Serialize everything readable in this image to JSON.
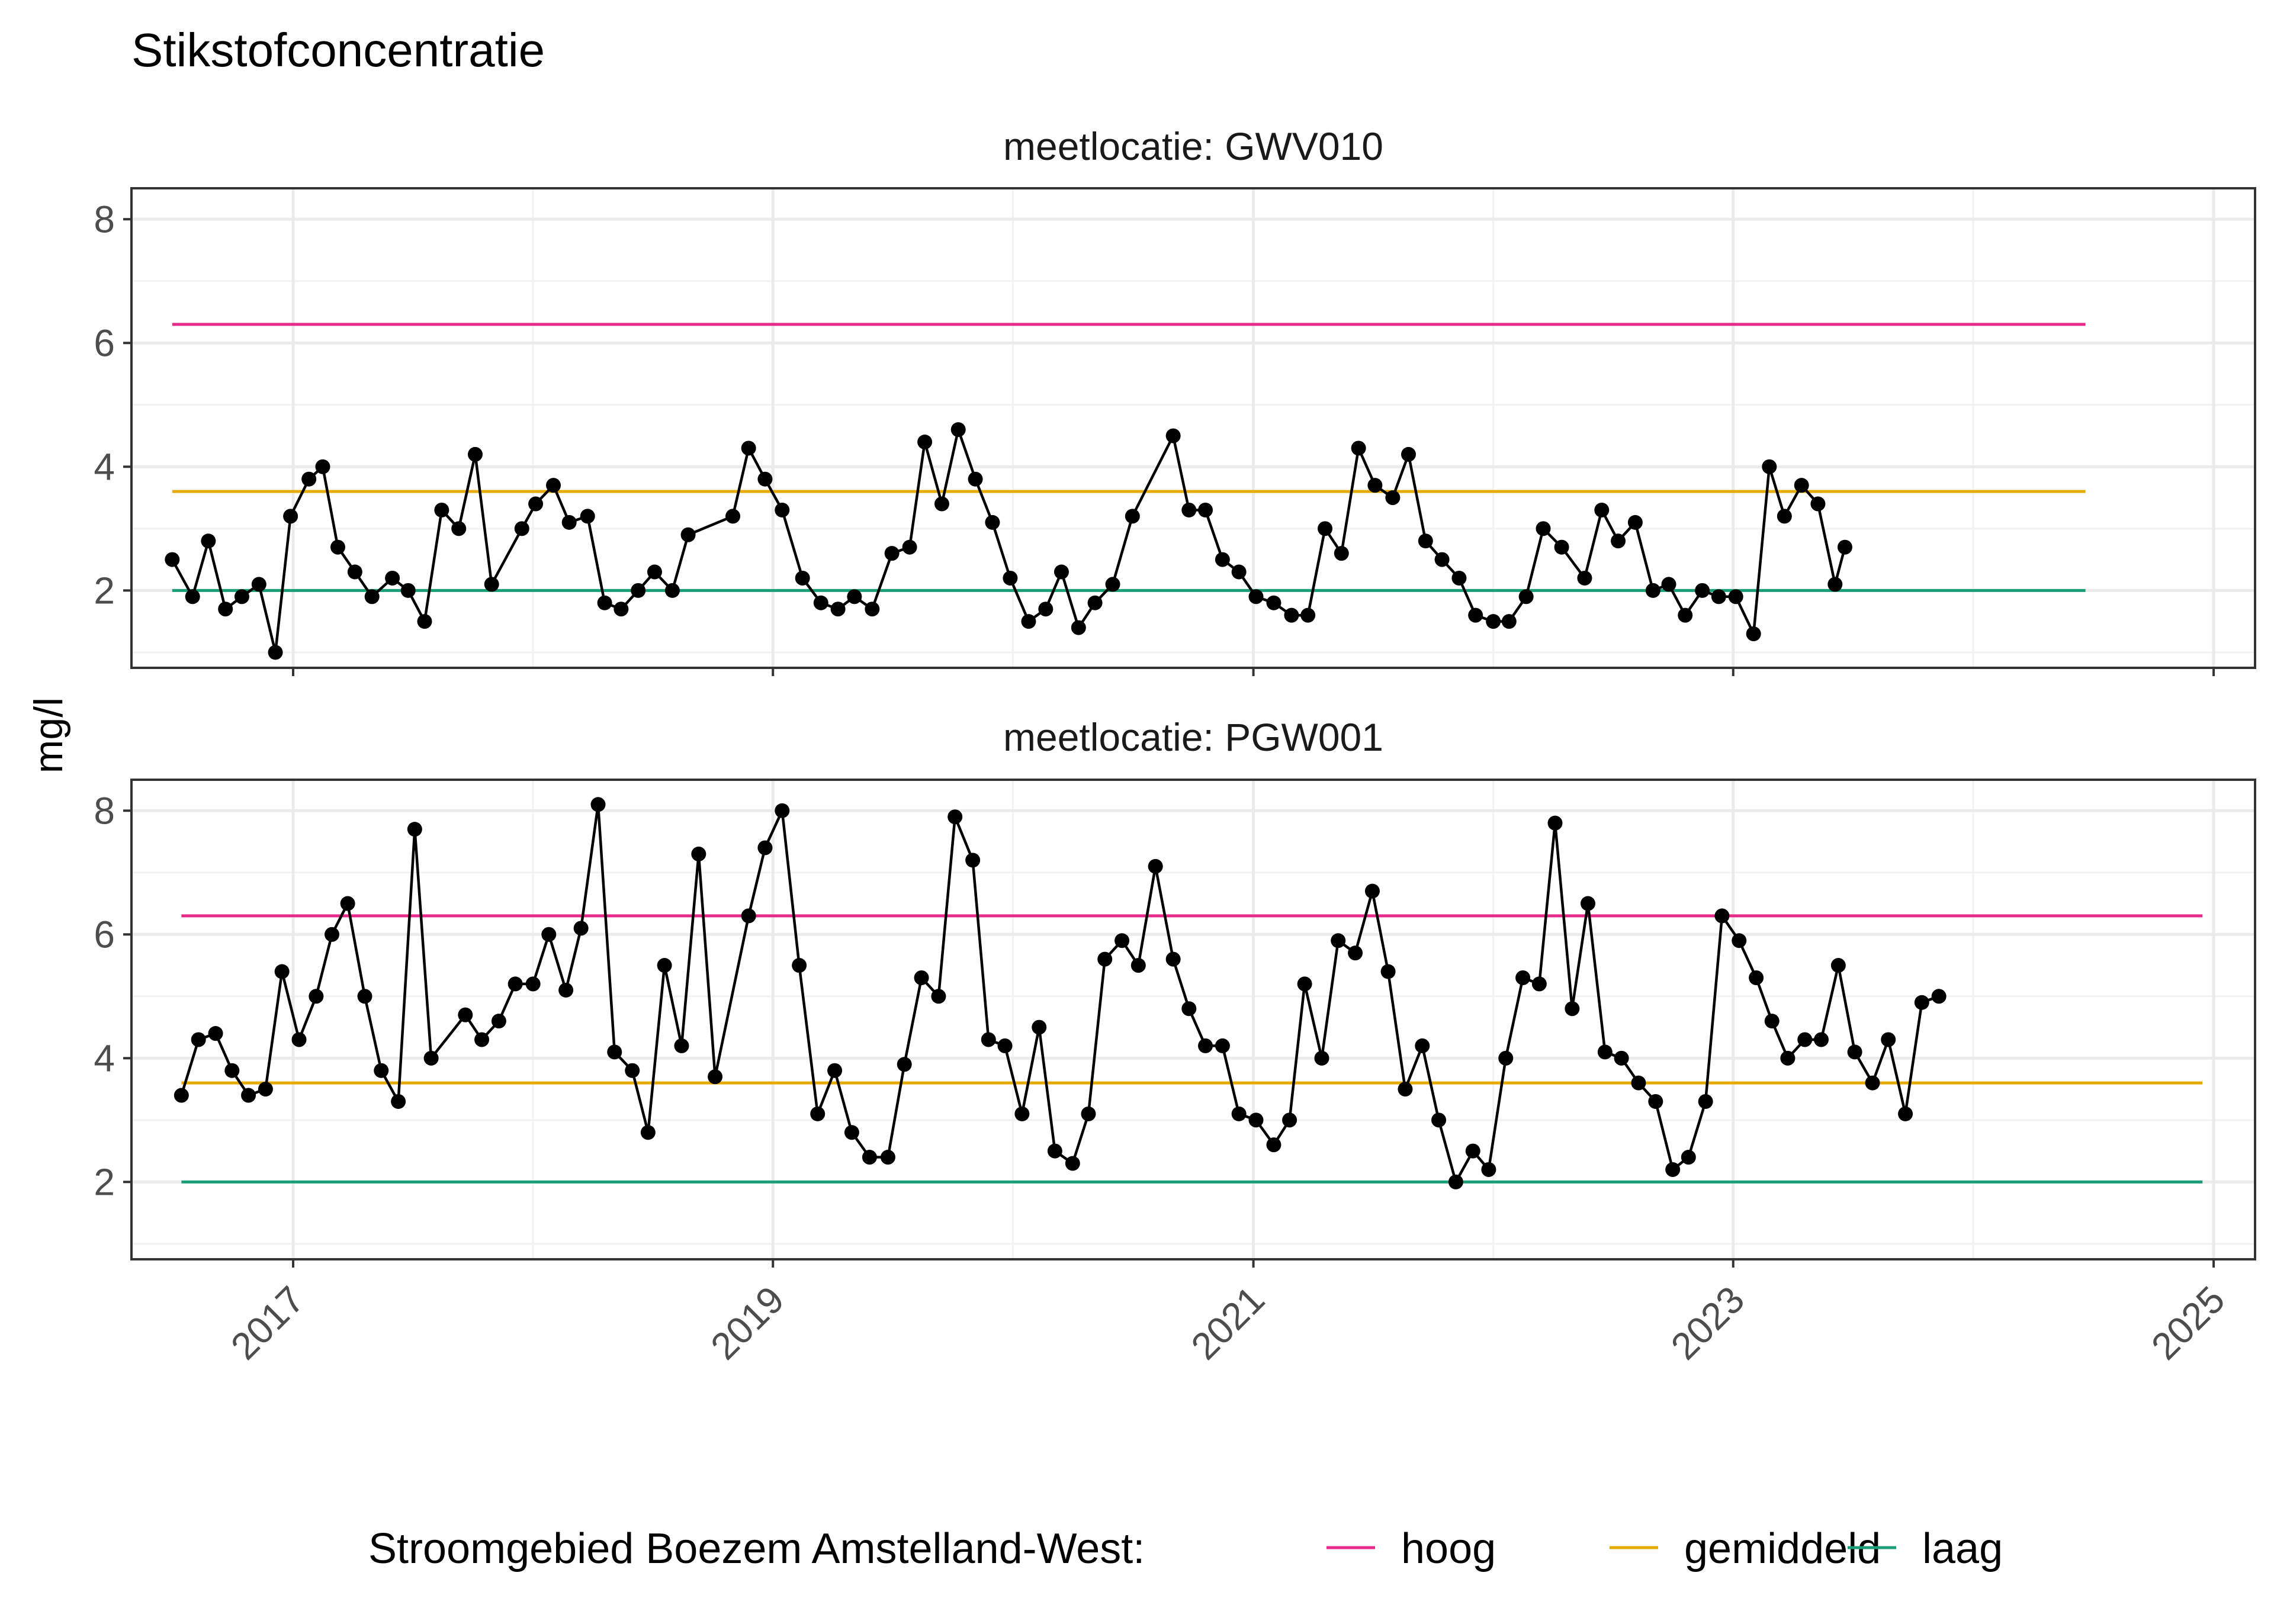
{
  "chart_data": {
    "type": "line",
    "title": "Stikstofconcentratie",
    "ylabel": "mg/l",
    "xlabel": "",
    "x_ticks": [
      "2017",
      "2019",
      "2021",
      "2023",
      "2025"
    ],
    "y_ticks": [
      2,
      4,
      6,
      8
    ],
    "ylim": [
      0.75,
      8.5
    ],
    "xlim": [
      "2016-04-30",
      "2025-03-05"
    ],
    "grid": true,
    "legend": {
      "title": "Stroomgebied Boezem Amstelland-West:",
      "position": "bottom",
      "items": [
        {
          "label": "hoog",
          "color": "#E7298A"
        },
        {
          "label": "gemiddeld",
          "color": "#E6AB02"
        },
        {
          "label": "laag",
          "color": "#1B9E77"
        }
      ]
    },
    "series_color": "#000000",
    "panels": [
      {
        "strip": "meetlocatie: GWV010",
        "reference_lines": {
          "hoog": {
            "value": 6.3,
            "x_range": [
              "2016-07-01",
              "2024-06-20"
            ]
          },
          "gemiddeld": {
            "value": 3.6,
            "x_range": [
              "2016-07-01",
              "2024-06-20"
            ]
          },
          "laag": {
            "value": 2.0,
            "x_range": [
              "2016-07-01",
              "2024-06-20"
            ]
          }
        },
        "points": [
          [
            "2016-07-01",
            2.5
          ],
          [
            "2016-08-01",
            1.9
          ],
          [
            "2016-08-25",
            2.8
          ],
          [
            "2016-09-20",
            1.7
          ],
          [
            "2016-10-15",
            1.9
          ],
          [
            "2016-11-10",
            2.1
          ],
          [
            "2016-12-05",
            1.0
          ],
          [
            "2016-12-28",
            3.2
          ],
          [
            "2017-01-25",
            3.8
          ],
          [
            "2017-02-15",
            4.0
          ],
          [
            "2017-03-10",
            2.7
          ],
          [
            "2017-04-05",
            2.3
          ],
          [
            "2017-05-01",
            1.9
          ],
          [
            "2017-06-01",
            2.2
          ],
          [
            "2017-06-25",
            2.0
          ],
          [
            "2017-07-20",
            1.5
          ],
          [
            "2017-08-15",
            3.3
          ],
          [
            "2017-09-10",
            3.0
          ],
          [
            "2017-10-05",
            4.2
          ],
          [
            "2017-10-30",
            2.1
          ],
          [
            "2017-12-15",
            3.0
          ],
          [
            "2018-01-05",
            3.4
          ],
          [
            "2018-02-01",
            3.7
          ],
          [
            "2018-02-25",
            3.1
          ],
          [
            "2018-03-25",
            3.2
          ],
          [
            "2018-04-20",
            1.8
          ],
          [
            "2018-05-15",
            1.7
          ],
          [
            "2018-06-10",
            2.0
          ],
          [
            "2018-07-05",
            2.3
          ],
          [
            "2018-08-01",
            2.0
          ],
          [
            "2018-08-25",
            2.9
          ],
          [
            "2018-11-01",
            3.2
          ],
          [
            "2018-11-25",
            4.3
          ],
          [
            "2018-12-20",
            3.8
          ],
          [
            "2019-01-15",
            3.3
          ],
          [
            "2019-02-15",
            2.2
          ],
          [
            "2019-03-15",
            1.8
          ],
          [
            "2019-04-10",
            1.7
          ],
          [
            "2019-05-05",
            1.9
          ],
          [
            "2019-06-01",
            1.7
          ],
          [
            "2019-07-01",
            2.6
          ],
          [
            "2019-07-28",
            2.7
          ],
          [
            "2019-08-20",
            4.4
          ],
          [
            "2019-09-15",
            3.4
          ],
          [
            "2019-10-10",
            4.6
          ],
          [
            "2019-11-05",
            3.8
          ],
          [
            "2019-12-01",
            3.1
          ],
          [
            "2019-12-28",
            2.2
          ],
          [
            "2020-01-25",
            1.5
          ],
          [
            "2020-02-20",
            1.7
          ],
          [
            "2020-03-15",
            2.3
          ],
          [
            "2020-04-10",
            1.4
          ],
          [
            "2020-05-05",
            1.8
          ],
          [
            "2020-06-01",
            2.1
          ],
          [
            "2020-07-01",
            3.2
          ],
          [
            "2020-09-01",
            4.5
          ],
          [
            "2020-09-25",
            3.3
          ],
          [
            "2020-10-20",
            3.3
          ],
          [
            "2020-11-15",
            2.5
          ],
          [
            "2020-12-10",
            2.3
          ],
          [
            "2021-01-05",
            1.9
          ],
          [
            "2021-02-01",
            1.8
          ],
          [
            "2021-02-28",
            1.6
          ],
          [
            "2021-03-25",
            1.6
          ],
          [
            "2021-04-20",
            3.0
          ],
          [
            "2021-05-15",
            2.6
          ],
          [
            "2021-06-10",
            4.3
          ],
          [
            "2021-07-05",
            3.7
          ],
          [
            "2021-08-01",
            3.5
          ],
          [
            "2021-08-25",
            4.2
          ],
          [
            "2021-09-20",
            2.8
          ],
          [
            "2021-10-15",
            2.5
          ],
          [
            "2021-11-10",
            2.2
          ],
          [
            "2021-12-05",
            1.6
          ],
          [
            "2022-01-01",
            1.5
          ],
          [
            "2022-01-25",
            1.5
          ],
          [
            "2022-02-20",
            1.9
          ],
          [
            "2022-03-18",
            3.0
          ],
          [
            "2022-04-15",
            2.7
          ],
          [
            "2022-05-20",
            2.2
          ],
          [
            "2022-06-15",
            3.3
          ],
          [
            "2022-07-10",
            2.8
          ],
          [
            "2022-08-05",
            3.1
          ],
          [
            "2022-09-01",
            2.0
          ],
          [
            "2022-09-25",
            2.1
          ],
          [
            "2022-10-20",
            1.6
          ],
          [
            "2022-11-15",
            2.0
          ],
          [
            "2022-12-10",
            1.9
          ],
          [
            "2023-01-05",
            1.9
          ],
          [
            "2023-02-01",
            1.3
          ],
          [
            "2023-02-25",
            4.0
          ],
          [
            "2023-03-20",
            3.2
          ],
          [
            "2023-04-15",
            3.7
          ],
          [
            "2023-05-10",
            3.4
          ],
          [
            "2023-06-05",
            2.1
          ],
          [
            "2023-06-20",
            2.7
          ]
        ]
      },
      {
        "strip": "meetlocatie: PGW001",
        "reference_lines": {
          "hoog": {
            "value": 6.3,
            "x_range": [
              "2016-07-15",
              "2024-12-15"
            ]
          },
          "gemiddeld": {
            "value": 3.6,
            "x_range": [
              "2016-07-15",
              "2024-12-15"
            ]
          },
          "laag": {
            "value": 2.0,
            "x_range": [
              "2016-07-15",
              "2024-12-15"
            ]
          }
        },
        "points": [
          [
            "2016-07-15",
            3.4
          ],
          [
            "2016-08-10",
            4.3
          ],
          [
            "2016-09-05",
            4.4
          ],
          [
            "2016-09-30",
            3.8
          ],
          [
            "2016-10-25",
            3.4
          ],
          [
            "2016-11-20",
            3.5
          ],
          [
            "2016-12-15",
            5.4
          ],
          [
            "2017-01-10",
            4.3
          ],
          [
            "2017-02-05",
            5.0
          ],
          [
            "2017-03-01",
            6.0
          ],
          [
            "2017-03-25",
            6.5
          ],
          [
            "2017-04-20",
            5.0
          ],
          [
            "2017-05-15",
            3.8
          ],
          [
            "2017-06-10",
            3.3
          ],
          [
            "2017-07-05",
            7.7
          ],
          [
            "2017-07-30",
            4.0
          ],
          [
            "2017-09-20",
            4.7
          ],
          [
            "2017-10-15",
            4.3
          ],
          [
            "2017-11-10",
            4.6
          ],
          [
            "2017-12-05",
            5.2
          ],
          [
            "2018-01-01",
            5.2
          ],
          [
            "2018-01-25",
            6.0
          ],
          [
            "2018-02-20",
            5.1
          ],
          [
            "2018-03-15",
            6.1
          ],
          [
            "2018-04-10",
            8.1
          ],
          [
            "2018-05-05",
            4.1
          ],
          [
            "2018-06-01",
            3.8
          ],
          [
            "2018-06-25",
            2.8
          ],
          [
            "2018-07-20",
            5.5
          ],
          [
            "2018-08-15",
            4.2
          ],
          [
            "2018-09-10",
            7.3
          ],
          [
            "2018-10-05",
            3.7
          ],
          [
            "2018-11-25",
            6.3
          ],
          [
            "2018-12-20",
            7.4
          ],
          [
            "2019-01-15",
            8.0
          ],
          [
            "2019-02-10",
            5.5
          ],
          [
            "2019-03-10",
            3.1
          ],
          [
            "2019-04-05",
            3.8
          ],
          [
            "2019-05-01",
            2.8
          ],
          [
            "2019-05-28",
            2.4
          ],
          [
            "2019-06-25",
            2.4
          ],
          [
            "2019-07-20",
            3.9
          ],
          [
            "2019-08-15",
            5.3
          ],
          [
            "2019-09-10",
            5.0
          ],
          [
            "2019-10-05",
            7.9
          ],
          [
            "2019-11-01",
            7.2
          ],
          [
            "2019-11-25",
            4.3
          ],
          [
            "2019-12-20",
            4.2
          ],
          [
            "2020-01-15",
            3.1
          ],
          [
            "2020-02-10",
            4.5
          ],
          [
            "2020-03-05",
            2.5
          ],
          [
            "2020-04-01",
            2.3
          ],
          [
            "2020-04-25",
            3.1
          ],
          [
            "2020-05-20",
            5.6
          ],
          [
            "2020-06-15",
            5.9
          ],
          [
            "2020-07-10",
            5.5
          ],
          [
            "2020-08-05",
            7.1
          ],
          [
            "2020-09-01",
            5.6
          ],
          [
            "2020-09-25",
            4.8
          ],
          [
            "2020-10-20",
            4.2
          ],
          [
            "2020-11-15",
            4.2
          ],
          [
            "2020-12-10",
            3.1
          ],
          [
            "2021-01-05",
            3.0
          ],
          [
            "2021-02-01",
            2.6
          ],
          [
            "2021-02-25",
            3.0
          ],
          [
            "2021-03-20",
            5.2
          ],
          [
            "2021-04-15",
            4.0
          ],
          [
            "2021-05-10",
            5.9
          ],
          [
            "2021-06-05",
            5.7
          ],
          [
            "2021-07-01",
            6.7
          ],
          [
            "2021-07-25",
            5.4
          ],
          [
            "2021-08-20",
            3.5
          ],
          [
            "2021-09-15",
            4.2
          ],
          [
            "2021-10-10",
            3.0
          ],
          [
            "2021-11-05",
            2.0
          ],
          [
            "2021-12-01",
            2.5
          ],
          [
            "2021-12-25",
            2.2
          ],
          [
            "2022-01-20",
            4.0
          ],
          [
            "2022-02-15",
            5.3
          ],
          [
            "2022-03-12",
            5.2
          ],
          [
            "2022-04-05",
            7.8
          ],
          [
            "2022-05-01",
            4.8
          ],
          [
            "2022-05-25",
            6.5
          ],
          [
            "2022-06-20",
            4.1
          ],
          [
            "2022-07-15",
            4.0
          ],
          [
            "2022-08-10",
            3.6
          ],
          [
            "2022-09-05",
            3.3
          ],
          [
            "2022-10-01",
            2.2
          ],
          [
            "2022-10-25",
            2.4
          ],
          [
            "2022-11-20",
            3.3
          ],
          [
            "2022-12-15",
            6.3
          ],
          [
            "2023-01-10",
            5.9
          ],
          [
            "2023-02-05",
            5.3
          ],
          [
            "2023-03-01",
            4.6
          ],
          [
            "2023-03-25",
            4.0
          ],
          [
            "2023-04-20",
            4.3
          ],
          [
            "2023-05-15",
            4.3
          ],
          [
            "2023-06-10",
            5.5
          ],
          [
            "2023-07-05",
            4.1
          ],
          [
            "2023-08-01",
            3.6
          ],
          [
            "2023-08-25",
            4.3
          ],
          [
            "2023-09-20",
            3.1
          ],
          [
            "2023-10-15",
            4.9
          ],
          [
            "2023-11-10",
            5.0
          ]
        ]
      }
    ]
  }
}
